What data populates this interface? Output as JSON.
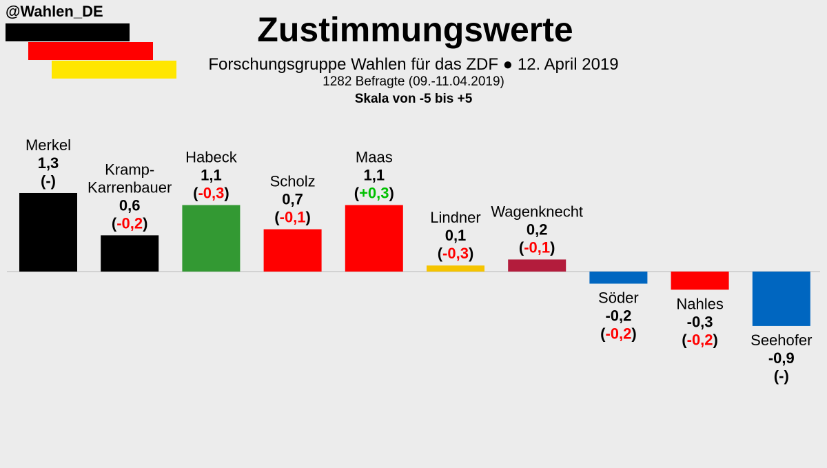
{
  "header": {
    "handle": "@Wahlen_DE",
    "title": "Zustimmungswerte",
    "subtitle": "Forschungsgruppe Wahlen für das ZDF ● 12. April 2019",
    "respondents": "1282 Befragte (09.-11.04.2019)",
    "scale_note": "Skala von -5 bis +5"
  },
  "colors": {
    "flag_black": "#000000",
    "flag_red": "#ff0000",
    "flag_gold": "#ffe600",
    "change_negative": "#ff0000",
    "change_positive": "#00c000",
    "background": "#ececec"
  },
  "chart_data": {
    "type": "bar",
    "ylim": [
      -5,
      5
    ],
    "categories": [
      "Merkel",
      "Kramp-Karrenbauer",
      "Habeck",
      "Scholz",
      "Maas",
      "Lindner",
      "Wagenknecht",
      "Söder",
      "Nahles",
      "Seehofer"
    ],
    "series": [
      {
        "values": [
          1.3,
          0.6,
          1.1,
          0.7,
          1.1,
          0.1,
          0.2,
          -0.2,
          -0.3,
          -0.9
        ],
        "value_labels": [
          "1,3",
          "0,6",
          "1,1",
          "0,7",
          "1,1",
          "0,1",
          "0,2",
          "-0,2",
          "-0,3",
          "-0,9"
        ],
        "change_labels": [
          "-",
          "-0,2",
          "-0,3",
          "-0,1",
          "+0,3",
          "-0,3",
          "-0,1",
          "-0,2",
          "-0,2",
          "-"
        ],
        "colors": [
          "#000000",
          "#000000",
          "#339933",
          "#ff0000",
          "#ff0000",
          "#f5c400",
          "#b31c3c",
          "#0066c0",
          "#ff0000",
          "#0066c0"
        ]
      }
    ],
    "name_lines": [
      [
        "Merkel"
      ],
      [
        "Kramp-",
        "Karrenbauer"
      ],
      [
        "Habeck"
      ],
      [
        "Scholz"
      ],
      [
        "Maas"
      ],
      [
        "Lindner"
      ],
      [
        "Wagenknecht"
      ],
      [
        "Söder"
      ],
      [
        "Nahles"
      ],
      [
        "Seehofer"
      ]
    ],
    "grid": false
  }
}
